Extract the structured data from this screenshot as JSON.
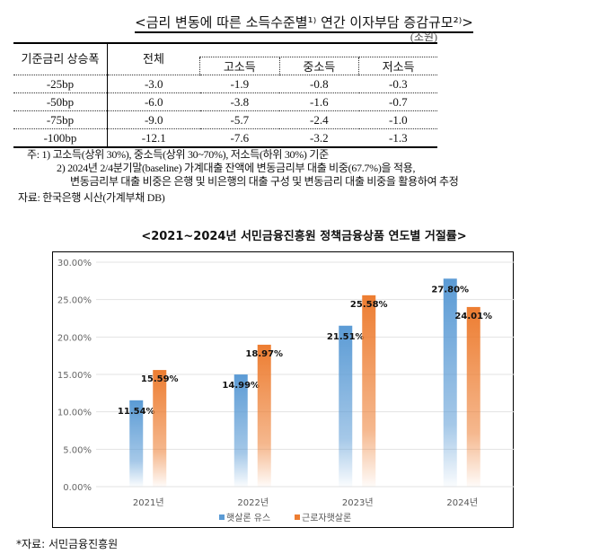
{
  "table": {
    "title": "<금리 변동에 따른 소득수준별¹⁾ 연간 이자부담 증감규모²⁾>",
    "unit": "(조원)",
    "headers": {
      "rate": "기준금리 상승폭",
      "total": "전체",
      "high": "고소득",
      "mid": "중소득",
      "low": "저소득"
    },
    "rows": [
      {
        "rate": "-25bp",
        "total": "-3.0",
        "high": "-1.9",
        "mid": "-0.8",
        "low": "-0.3"
      },
      {
        "rate": "-50bp",
        "total": "-6.0",
        "high": "-3.8",
        "mid": "-1.6",
        "low": "-0.7"
      },
      {
        "rate": "-75bp",
        "total": "-9.0",
        "high": "-5.7",
        "mid": "-2.4",
        "low": "-1.0"
      },
      {
        "rate": "-100bp",
        "total": "-12.1",
        "high": "-7.6",
        "mid": "-3.2",
        "low": "-1.3"
      }
    ],
    "notes": [
      "주: 1) 고소득(상위 30%), 중소득(상위 30~70%), 저소득(하위 30%) 기준",
      "2) 2024년 2/4분기말(baseline) 가계대출 잔액에 변동금리부 대출 비중(67.7%)을 적용,",
      "변동금리부 대출 비중은 은행 및 비은행의 대출 구성 및 변동금리 대출 비중을 활용하여 추정"
    ],
    "source": "자료: 한국은행 시산(가계부채 DB)"
  },
  "chart_data": {
    "type": "bar",
    "title": "<2021~2024년 서민금융진흥원 정책금융상품 연도별 거절률>",
    "categories": [
      "2021년",
      "2022년",
      "2023년",
      "2024년"
    ],
    "series": [
      {
        "name": "햇살론 유스",
        "color": "#5b9bd5",
        "values": [
          11.54,
          14.99,
          21.51,
          27.8
        ],
        "labels": [
          "11.54%",
          "14.99%",
          "21.51%",
          "27.80%"
        ]
      },
      {
        "name": "근로자햇살론",
        "color": "#ed7d31",
        "values": [
          15.59,
          18.97,
          25.58,
          24.01
        ],
        "labels": [
          "15.59%",
          "18.97%",
          "25.58%",
          "24.01%"
        ]
      }
    ],
    "ylim": [
      0,
      30
    ],
    "yticks": [
      "0.00%",
      "5.00%",
      "10.00%",
      "15.00%",
      "20.00%",
      "25.00%",
      "30.00%"
    ],
    "legend": "bottom",
    "grid": true
  },
  "source": "*자료: 서민금융진흥원"
}
